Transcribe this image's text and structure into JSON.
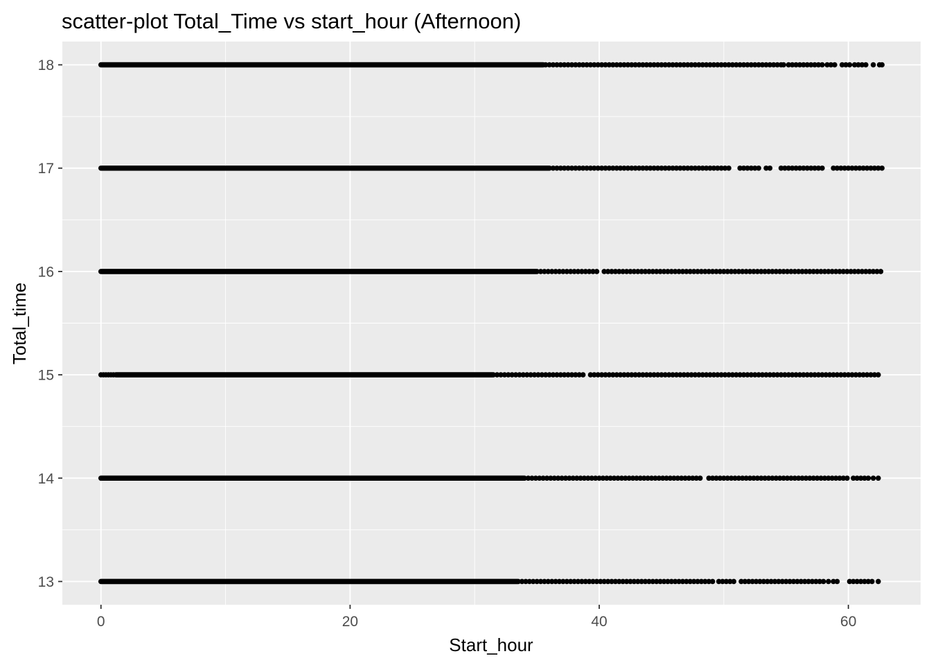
{
  "chart_data": {
    "type": "scatter",
    "title": "scatter-plot Total_Time vs start_hour (Afternoon)",
    "xlabel": "Start_hour",
    "ylabel": "Total_time",
    "xlim": [
      -3.1,
      65.8
    ],
    "ylim": [
      12.775,
      18.225
    ],
    "x_ticks": [
      0,
      20,
      40,
      60
    ],
    "x_tick_labels": [
      "0",
      "20",
      "40",
      "60"
    ],
    "y_ticks": [
      13,
      14,
      15,
      16,
      17,
      18
    ],
    "y_tick_labels": [
      "13",
      "14",
      "15",
      "16",
      "17",
      "18"
    ],
    "grid": true,
    "background_color": "#ebebeb",
    "gridline_color": "#ffffff",
    "point_color": "#000000",
    "legend": "none",
    "series": [
      {
        "y": 18,
        "dense_range": [
          0,
          35.5
        ],
        "points": [
          35.7,
          36.0,
          36.3,
          36.6,
          36.9,
          37.2,
          37.5,
          37.8,
          38.1,
          38.4,
          38.7,
          39.0,
          39.3,
          39.6,
          39.9,
          40.2,
          40.5,
          40.8,
          41.1,
          41.4,
          41.7,
          42.0,
          42.3,
          42.6,
          42.9,
          43.2,
          43.5,
          43.8,
          44.1,
          44.4,
          44.7,
          45.0,
          45.3,
          45.6,
          45.9,
          46.2,
          46.5,
          46.8,
          47.1,
          47.4,
          47.7,
          48.0,
          48.3,
          48.6,
          48.9,
          49.2,
          49.5,
          49.8,
          50.1,
          50.4,
          50.7,
          51.0,
          51.3,
          51.6,
          51.9,
          52.2,
          52.5,
          52.8,
          53.1,
          53.4,
          53.7,
          54.0,
          54.3,
          54.6,
          54.8,
          55.2,
          55.5,
          55.8,
          56.1,
          56.4,
          56.7,
          57.0,
          57.3,
          57.6,
          57.9,
          58.3,
          58.6,
          58.9,
          59.5,
          59.8,
          60.1,
          60.5,
          60.8,
          61.1,
          61.4,
          62.0,
          62.5,
          62.7
        ]
      },
      {
        "y": 17,
        "dense_range": [
          0,
          36.0
        ],
        "points": [
          36.3,
          36.6,
          36.9,
          37.2,
          37.5,
          37.8,
          38.1,
          38.4,
          38.7,
          39.0,
          39.3,
          39.6,
          39.9,
          40.2,
          40.5,
          40.8,
          41.1,
          41.4,
          41.7,
          42.0,
          42.3,
          42.6,
          42.9,
          43.2,
          43.5,
          43.8,
          44.1,
          44.4,
          44.7,
          45.0,
          45.3,
          45.6,
          45.9,
          46.2,
          46.5,
          46.8,
          47.1,
          47.4,
          47.7,
          48.0,
          48.3,
          48.6,
          48.9,
          49.2,
          49.5,
          49.8,
          50.1,
          50.4,
          51.3,
          51.6,
          51.9,
          52.2,
          52.5,
          52.8,
          53.4,
          53.7,
          54.6,
          54.9,
          55.2,
          55.5,
          55.8,
          56.1,
          56.4,
          56.7,
          57.0,
          57.3,
          57.6,
          57.9,
          58.8,
          59.1,
          59.4,
          59.7,
          60.0,
          60.3,
          60.6,
          60.9,
          61.2,
          61.5,
          61.8,
          62.1,
          62.4,
          62.7
        ]
      },
      {
        "y": 16,
        "dense_range": [
          0,
          35.0
        ],
        "points": [
          35.3,
          35.6,
          35.9,
          36.2,
          36.5,
          36.8,
          37.1,
          37.4,
          37.7,
          38.0,
          38.3,
          38.6,
          38.9,
          39.2,
          39.5,
          39.8,
          40.4,
          40.7,
          41.0,
          41.3,
          41.6,
          41.9,
          42.2,
          42.5,
          42.8,
          43.1,
          43.4,
          43.7,
          44.0,
          44.3,
          44.6,
          44.9,
          45.2,
          45.5,
          45.8,
          46.1,
          46.4,
          46.7,
          47.0,
          47.3,
          47.6,
          47.9,
          48.2,
          48.5,
          48.8,
          49.1,
          49.4,
          49.7,
          50.0,
          50.3,
          50.6,
          50.9,
          51.2,
          51.5,
          51.8,
          52.1,
          52.4,
          52.7,
          53.0,
          53.3,
          53.6,
          53.9,
          54.2,
          54.5,
          54.8,
          55.1,
          55.4,
          55.7,
          56.0,
          56.3,
          56.6,
          56.9,
          57.2,
          57.5,
          57.8,
          58.1,
          58.4,
          58.7,
          59.0,
          59.3,
          59.6,
          59.9,
          60.2,
          60.5,
          60.8,
          61.1,
          61.4,
          61.7,
          62.0,
          62.3,
          62.6
        ]
      },
      {
        "y": 15,
        "dense_range": [
          1.2,
          31.5
        ],
        "points": [
          0,
          0.2,
          0.4,
          0.6,
          0.8,
          1.0,
          31.8,
          32.1,
          32.4,
          32.7,
          33.0,
          33.3,
          33.6,
          33.9,
          34.2,
          34.5,
          34.8,
          35.1,
          35.4,
          35.7,
          36.0,
          36.3,
          36.6,
          36.9,
          37.2,
          37.5,
          37.8,
          38.1,
          38.4,
          38.7,
          39.3,
          39.6,
          39.9,
          40.2,
          40.5,
          40.8,
          41.1,
          41.4,
          41.7,
          42.0,
          42.3,
          42.6,
          42.9,
          43.2,
          43.5,
          43.8,
          44.1,
          44.4,
          44.7,
          45.0,
          45.3,
          45.6,
          45.9,
          46.2,
          46.5,
          46.8,
          47.1,
          47.4,
          47.7,
          48.0,
          48.3,
          48.6,
          48.9,
          49.2,
          49.5,
          49.8,
          50.1,
          50.4,
          50.7,
          51.0,
          51.3,
          51.6,
          51.9,
          52.2,
          52.5,
          52.8,
          53.1,
          53.4,
          53.7,
          54.0,
          54.3,
          54.6,
          54.9,
          55.2,
          55.5,
          55.8,
          56.1,
          56.4,
          56.7,
          57.0,
          57.3,
          57.6,
          57.9,
          58.2,
          58.5,
          58.8,
          59.1,
          59.4,
          59.7,
          60.0,
          60.3,
          60.6,
          60.9,
          61.2,
          61.5,
          61.8,
          62.1,
          62.4
        ]
      },
      {
        "y": 14,
        "dense_range": [
          0,
          34.0
        ],
        "points": [
          34.3,
          34.6,
          34.9,
          35.2,
          35.5,
          35.8,
          36.1,
          36.4,
          36.7,
          37.0,
          37.3,
          37.6,
          37.9,
          38.2,
          38.5,
          38.8,
          39.1,
          39.4,
          39.7,
          40.0,
          40.3,
          40.6,
          40.9,
          41.2,
          41.5,
          41.8,
          42.1,
          42.4,
          42.7,
          43.0,
          43.3,
          43.6,
          43.9,
          44.2,
          44.5,
          44.8,
          45.1,
          45.4,
          45.7,
          46.0,
          46.3,
          46.6,
          46.9,
          47.2,
          47.5,
          47.8,
          48.1,
          48.8,
          49.1,
          49.4,
          49.7,
          50.0,
          50.3,
          50.6,
          50.9,
          51.2,
          51.5,
          51.8,
          52.1,
          52.4,
          52.7,
          53.0,
          53.3,
          53.6,
          53.9,
          54.2,
          54.5,
          54.8,
          55.1,
          55.4,
          55.7,
          56.0,
          56.3,
          56.6,
          56.9,
          57.2,
          57.5,
          57.8,
          58.1,
          58.4,
          58.7,
          59.0,
          59.3,
          59.6,
          59.9,
          60.4,
          60.7,
          61.0,
          61.3,
          61.6,
          62.0,
          62.4
        ]
      },
      {
        "y": 13,
        "dense_range": [
          0,
          33.5
        ],
        "points": [
          33.8,
          34.1,
          34.4,
          34.7,
          35.0,
          35.3,
          35.6,
          35.9,
          36.2,
          36.5,
          36.8,
          37.1,
          37.4,
          37.7,
          38.0,
          38.3,
          38.6,
          38.9,
          39.2,
          39.5,
          39.8,
          40.1,
          40.4,
          40.7,
          41.0,
          41.3,
          41.6,
          41.9,
          42.2,
          42.5,
          42.8,
          43.1,
          43.4,
          43.7,
          44.0,
          44.3,
          44.6,
          44.9,
          45.2,
          45.5,
          45.8,
          46.1,
          46.4,
          46.7,
          47.0,
          47.3,
          47.6,
          47.9,
          48.2,
          48.5,
          48.8,
          49.1,
          49.6,
          49.9,
          50.2,
          50.5,
          50.8,
          51.4,
          51.7,
          52.0,
          52.3,
          52.6,
          52.9,
          53.2,
          53.5,
          53.8,
          54.1,
          54.4,
          54.7,
          55.0,
          55.3,
          55.6,
          55.9,
          56.2,
          56.5,
          56.8,
          57.1,
          57.4,
          57.7,
          58.0,
          58.4,
          58.8,
          59.1,
          60.1,
          60.4,
          60.7,
          61.0,
          61.3,
          61.6,
          61.9,
          62.4
        ]
      }
    ]
  }
}
